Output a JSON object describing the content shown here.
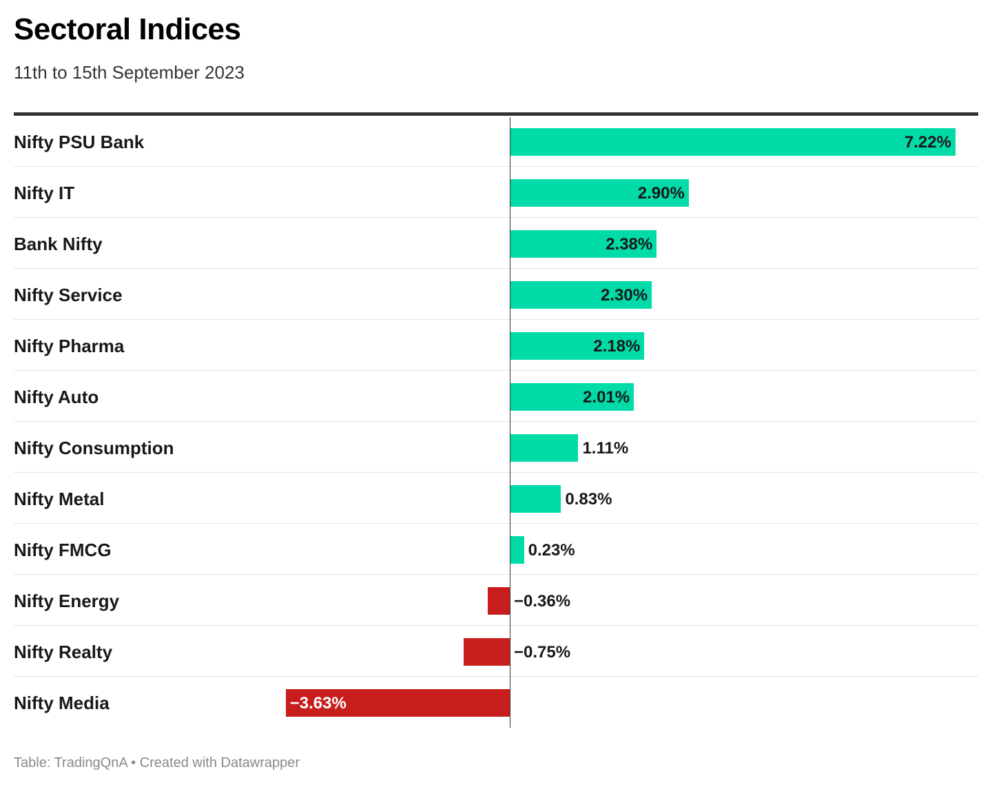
{
  "title": "Sectoral Indices",
  "subtitle": "11th to 15th September 2023",
  "footer": {
    "source": "Table: TradingQnA",
    "separator": " • ",
    "credit": "Created with Datawrapper"
  },
  "colors": {
    "positive": "#00dba8",
    "negative": "#c71e1d",
    "label_dark": "#181818",
    "label_light": "#ffffff"
  },
  "chart_data": {
    "type": "bar",
    "orientation": "horizontal",
    "title": "Sectoral Indices",
    "subtitle": "11th to 15th September 2023",
    "categories": [
      "Nifty PSU Bank",
      "Nifty IT",
      "Bank Nifty",
      "Nifty Service",
      "Nifty Pharma",
      "Nifty Auto",
      "Nifty Consumption",
      "Nifty Metal",
      "Nifty FMCG",
      "Nifty Energy",
      "Nifty Realty",
      "Nifty Media"
    ],
    "values": [
      7.22,
      2.9,
      2.38,
      2.3,
      2.18,
      2.01,
      1.11,
      0.83,
      0.23,
      -0.36,
      -0.75,
      -3.63
    ],
    "value_labels": [
      "7.22%",
      "2.90%",
      "2.38%",
      "2.30%",
      "2.18%",
      "2.01%",
      "1.11%",
      "0.83%",
      "0.23%",
      "−0.36%",
      "−0.75%",
      "−3.63%"
    ],
    "xlim": [
      -3.63,
      7.22
    ],
    "xlabel": "",
    "ylabel": ""
  }
}
